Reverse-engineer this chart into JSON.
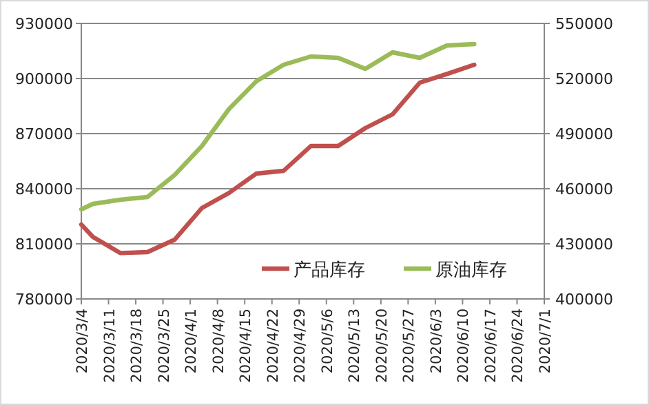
{
  "chart_data": {
    "type": "line",
    "x": [
      "2020-03-04",
      "2020-03-07",
      "2020-03-14",
      "2020-03-21",
      "2020-03-28",
      "2020-04-04",
      "2020-04-11",
      "2020-04-18",
      "2020-04-25",
      "2020-05-02",
      "2020-05-09",
      "2020-05-16",
      "2020-05-23",
      "2020-05-30",
      "2020-06-06",
      "2020-06-13"
    ],
    "series": [
      {
        "name": "产品库存",
        "color": "#c0504d",
        "values": [
          820500,
          813750,
          805000,
          805500,
          812250,
          829500,
          837750,
          848250,
          849750,
          863250,
          863250,
          873000,
          880500,
          897750,
          902500,
          907500
        ]
      },
      {
        "name": "原油库存",
        "color": "#9bbb59",
        "axis": "y2",
        "values": [
          448750,
          451750,
          454000,
          455500,
          467500,
          483250,
          503500,
          518500,
          527500,
          532000,
          531250,
          525250,
          534250,
          531250,
          538000,
          538750
        ]
      }
    ],
    "xlim": [
      "2020-03-04",
      "2020-07-01"
    ],
    "xticks": [
      {
        "value": "2020-03-04",
        "label": "2020/3/4"
      },
      {
        "value": "2020-03-11",
        "label": "2020/3/11"
      },
      {
        "value": "2020-03-18",
        "label": "2020/3/18"
      },
      {
        "value": "2020-03-25",
        "label": "2020/3/25"
      },
      {
        "value": "2020-04-01",
        "label": "2020/4/1"
      },
      {
        "value": "2020-04-08",
        "label": "2020/4/8"
      },
      {
        "value": "2020-04-15",
        "label": "2020/4/15"
      },
      {
        "value": "2020-04-22",
        "label": "2020/4/22"
      },
      {
        "value": "2020-04-29",
        "label": "2020/4/29"
      },
      {
        "value": "2020-05-06",
        "label": "2020/5/6"
      },
      {
        "value": "2020-05-13",
        "label": "2020/5/13"
      },
      {
        "value": "2020-05-20",
        "label": "2020/5/20"
      },
      {
        "value": "2020-05-27",
        "label": "2020/5/27"
      },
      {
        "value": "2020-06-03",
        "label": "2020/6/3"
      },
      {
        "value": "2020-06-10",
        "label": "2020/6/10"
      },
      {
        "value": "2020-06-17",
        "label": "2020/6/17"
      },
      {
        "value": "2020-06-24",
        "label": "2020/6/24"
      },
      {
        "value": "2020-07-01",
        "label": "2020/7/1"
      }
    ],
    "ylim": [
      780000,
      930000
    ],
    "yticks": [
      780000,
      810000,
      840000,
      870000,
      900000,
      930000
    ],
    "y2lim": [
      400000,
      550000
    ],
    "y2ticks": [
      400000,
      430000,
      460000,
      490000,
      520000,
      550000
    ],
    "grid": "y",
    "legend": "bottom right",
    "marker": "none",
    "line_style": "solid"
  }
}
